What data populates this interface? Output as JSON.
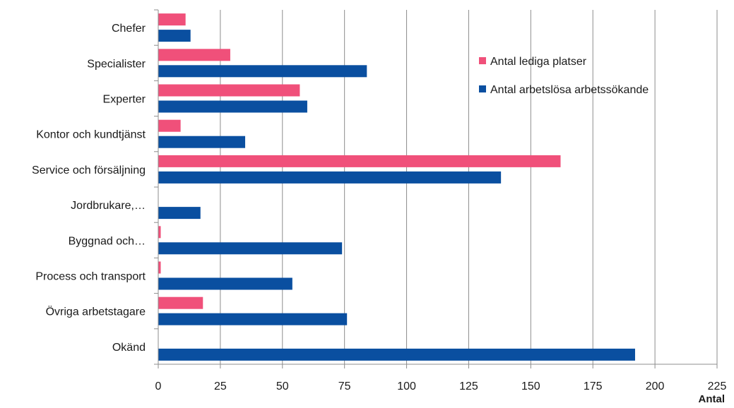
{
  "chart_data": {
    "type": "bar",
    "orientation": "horizontal",
    "categories": [
      "Chefer",
      "Specialister",
      "Experter",
      "Kontor och kundtjänst",
      "Service och försäljning",
      "Jordbrukare,…",
      "Byggnad och…",
      "Process och transport",
      "Övriga arbetstagare",
      "Okänd"
    ],
    "series": [
      {
        "name": "Antal lediga platser",
        "color": "#f0507a",
        "values": [
          11,
          29,
          57,
          9,
          162,
          0,
          1,
          1,
          18,
          0
        ]
      },
      {
        "name": "Antal arbetslösa arbetssökande",
        "color": "#0a4fa0",
        "values": [
          13,
          84,
          60,
          35,
          138,
          17,
          74,
          54,
          76,
          192
        ]
      }
    ],
    "xlabel": "Antal",
    "xlim": [
      0,
      225
    ],
    "xticks": [
      0,
      25,
      50,
      75,
      100,
      125,
      150,
      175,
      200,
      225
    ],
    "grid": true,
    "legend": "top-right"
  }
}
